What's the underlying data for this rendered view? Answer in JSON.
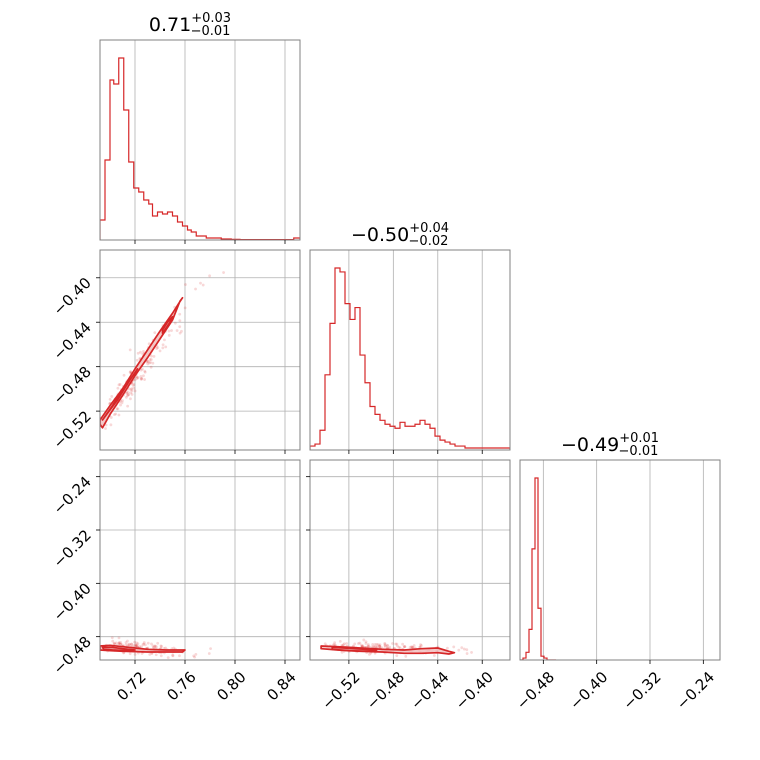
{
  "chart_data": {
    "type": "corner",
    "color": "#d62728",
    "fill_color": "#f2c0c0",
    "grid": true,
    "titles": [
      {
        "median": "0.71",
        "plus": "+0.03",
        "minus": "−0.01"
      },
      {
        "median": "−0.50",
        "plus": "+0.04",
        "minus": "−0.02"
      },
      {
        "median": "−0.49",
        "plus": "+0.01",
        "minus": "−0.01"
      }
    ],
    "parameters": [
      {
        "range": [
          0.692,
          0.852
        ],
        "ticks": [
          0.72,
          0.76,
          0.8,
          0.84
        ],
        "tick_labels": [
          "0.72",
          "0.76",
          "0.80",
          "0.84"
        ]
      },
      {
        "range": [
          -0.555,
          -0.375
        ],
        "ticks": [
          -0.52,
          -0.48,
          -0.44,
          -0.4
        ],
        "tick_labels": [
          "−0.52",
          "−0.48",
          "−0.44",
          "−0.40"
        ]
      },
      {
        "range": [
          -0.515,
          -0.215
        ],
        "ticks": [
          -0.48,
          -0.4,
          -0.32,
          -0.24
        ],
        "tick_labels": [
          "−0.48",
          "−0.40",
          "−0.32",
          "−0.24"
        ]
      }
    ],
    "histograms": [
      {
        "param": 0,
        "bin_edges": [
          0.692,
          0.696,
          0.7,
          0.703,
          0.707,
          0.711,
          0.715,
          0.719,
          0.723,
          0.727,
          0.731,
          0.734,
          0.738,
          0.742,
          0.746,
          0.75,
          0.754,
          0.758,
          0.762,
          0.765,
          0.769,
          0.773,
          0.777,
          0.781,
          0.785,
          0.789,
          0.793,
          0.797,
          0.8,
          0.804,
          0.808,
          0.812,
          0.816,
          0.82,
          0.824,
          0.828,
          0.831,
          0.835,
          0.839,
          0.843,
          0.847,
          0.852
        ],
        "counts": [
          0.1,
          0.4,
          0.8,
          0.78,
          0.91,
          0.65,
          0.39,
          0.26,
          0.24,
          0.2,
          0.18,
          0.12,
          0.14,
          0.13,
          0.14,
          0.12,
          0.09,
          0.07,
          0.05,
          0.04,
          0.02,
          0.02,
          0.01,
          0.01,
          0.01,
          0.005,
          0.005,
          0.003,
          0.003,
          0.002,
          0.002,
          0.002,
          0.002,
          0.002,
          0.002,
          0.002,
          0.002,
          0.002,
          0.002,
          0.002,
          0.01
        ]
      },
      {
        "param": 1,
        "bin_edges": [
          -0.555,
          -0.5505,
          -0.546,
          -0.5415,
          -0.537,
          -0.5325,
          -0.528,
          -0.5235,
          -0.519,
          -0.5145,
          -0.51,
          -0.5055,
          -0.501,
          -0.4965,
          -0.492,
          -0.4875,
          -0.483,
          -0.4785,
          -0.474,
          -0.4695,
          -0.465,
          -0.4605,
          -0.456,
          -0.4515,
          -0.447,
          -0.4425,
          -0.438,
          -0.4335,
          -0.429,
          -0.4245,
          -0.42,
          -0.4155,
          -0.411,
          -0.4065,
          -0.402,
          -0.3975,
          -0.393,
          -0.3885,
          -0.384,
          -0.3795,
          -0.375
        ],
        "counts": [
          0.02,
          0.03,
          0.1,
          0.38,
          0.64,
          0.92,
          0.9,
          0.74,
          0.66,
          0.72,
          0.48,
          0.34,
          0.22,
          0.18,
          0.15,
          0.13,
          0.12,
          0.11,
          0.14,
          0.12,
          0.12,
          0.13,
          0.15,
          0.13,
          0.11,
          0.07,
          0.05,
          0.04,
          0.03,
          0.02,
          0.02,
          0.01,
          0.01,
          0.01,
          0.01,
          0.01,
          0.01,
          0.01,
          0.01,
          0.01
        ]
      },
      {
        "param": 2,
        "bin_edges": [
          -0.515,
          -0.5105,
          -0.506,
          -0.5015,
          -0.497,
          -0.4925,
          -0.488,
          -0.4835,
          -0.479,
          -0.4745,
          -0.47,
          -0.4655,
          -0.461
        ],
        "counts": [
          0,
          0.01,
          0.04,
          0.16,
          0.58,
          0.95,
          0.27,
          0.02,
          0.01,
          0,
          0,
          0
        ]
      }
    ],
    "pairs": [
      {
        "x_param": 0,
        "y_param": 1,
        "contours": [
          [
            [
              0.692,
              -0.528
            ],
            [
              0.7,
              -0.515
            ],
            [
              0.71,
              -0.5
            ],
            [
              0.72,
              -0.482
            ],
            [
              0.73,
              -0.465
            ],
            [
              0.74,
              -0.448
            ],
            [
              0.75,
              -0.432
            ],
            [
              0.755,
              -0.423
            ],
            [
              0.758,
              -0.418
            ],
            [
              0.756,
              -0.421
            ],
            [
              0.75,
              -0.438
            ],
            [
              0.74,
              -0.455
            ],
            [
              0.73,
              -0.472
            ],
            [
              0.72,
              -0.488
            ],
            [
              0.71,
              -0.506
            ],
            [
              0.7,
              -0.523
            ],
            [
              0.694,
              -0.535
            ],
            [
              0.692,
              -0.532
            ]
          ],
          [
            [
              0.694,
              -0.528
            ],
            [
              0.702,
              -0.515
            ],
            [
              0.712,
              -0.497
            ],
            [
              0.72,
              -0.486
            ],
            [
              0.722,
              -0.482
            ],
            [
              0.716,
              -0.492
            ],
            [
              0.706,
              -0.51
            ],
            [
              0.698,
              -0.522
            ]
          ],
          [
            [
              0.742,
              -0.45
            ],
            [
              0.748,
              -0.44
            ],
            [
              0.75,
              -0.435
            ],
            [
              0.746,
              -0.44
            ],
            [
              0.742,
              -0.447
            ]
          ]
        ]
      },
      {
        "x_param": 0,
        "y_param": 2,
        "contours": [
          [
            [
              0.692,
              -0.494
            ],
            [
              0.7,
              -0.493
            ],
            [
              0.71,
              -0.495
            ],
            [
              0.72,
              -0.497
            ],
            [
              0.73,
              -0.499
            ],
            [
              0.745,
              -0.5
            ],
            [
              0.758,
              -0.5
            ],
            [
              0.76,
              -0.5
            ],
            [
              0.758,
              -0.503
            ],
            [
              0.745,
              -0.503
            ],
            [
              0.73,
              -0.503
            ],
            [
              0.71,
              -0.502
            ],
            [
              0.7,
              -0.501
            ],
            [
              0.692,
              -0.5
            ]
          ],
          [
            [
              0.694,
              -0.496
            ],
            [
              0.702,
              -0.496
            ],
            [
              0.71,
              -0.498
            ],
            [
              0.72,
              -0.5
            ],
            [
              0.714,
              -0.501
            ],
            [
              0.702,
              -0.5
            ],
            [
              0.695,
              -0.499
            ]
          ]
        ]
      },
      {
        "x_param": 1,
        "y_param": 2,
        "contours": [
          [
            [
              -0.545,
              -0.494
            ],
            [
              -0.53,
              -0.495
            ],
            [
              -0.51,
              -0.497
            ],
            [
              -0.49,
              -0.499
            ],
            [
              -0.47,
              -0.5
            ],
            [
              -0.455,
              -0.498
            ],
            [
              -0.44,
              -0.497
            ],
            [
              -0.43,
              -0.502
            ],
            [
              -0.425,
              -0.504
            ],
            [
              -0.43,
              -0.506
            ],
            [
              -0.44,
              -0.504
            ],
            [
              -0.455,
              -0.505
            ],
            [
              -0.47,
              -0.505
            ],
            [
              -0.49,
              -0.503
            ],
            [
              -0.51,
              -0.502
            ],
            [
              -0.53,
              -0.5
            ],
            [
              -0.545,
              -0.498
            ]
          ],
          [
            [
              -0.535,
              -0.496
            ],
            [
              -0.515,
              -0.498
            ],
            [
              -0.495,
              -0.5
            ],
            [
              -0.5,
              -0.502
            ],
            [
              -0.52,
              -0.501
            ],
            [
              -0.535,
              -0.499
            ]
          ]
        ]
      }
    ],
    "scatter_samples": 170
  }
}
